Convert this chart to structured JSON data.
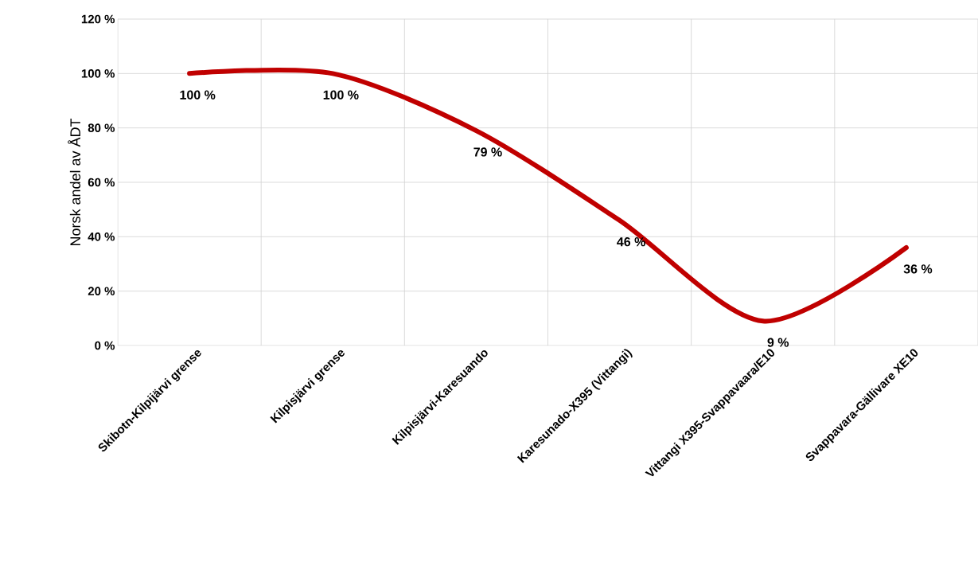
{
  "chart_data": {
    "type": "line",
    "ylabel": "Norsk andel av ÅDT",
    "categories": [
      "Skibotn-Kilpijärvi grense",
      "Kilpisjärvi grense",
      "Kilpisjärvi-Karesuando",
      "Karesunado-X395 (Vittangi)",
      "Vittangi X395-Svappavaara/E10",
      "Svappavara-Gällivare XE10"
    ],
    "series": [
      {
        "color": "#c00000",
        "values": [
          100,
          100,
          79,
          46,
          9,
          36
        ],
        "value_labels": [
          "100 %",
          "100 %",
          "79 %",
          "46 %",
          "9 %",
          "36 %"
        ]
      }
    ],
    "ylim": [
      0,
      120
    ],
    "yticks": [
      {
        "value": 0,
        "label": "0 %"
      },
      {
        "value": 20,
        "label": "20 %"
      },
      {
        "value": 40,
        "label": "40 %"
      },
      {
        "value": 60,
        "label": "60 %"
      },
      {
        "value": 80,
        "label": "80 %"
      },
      {
        "value": 100,
        "label": "100 %"
      },
      {
        "value": 120,
        "label": "120 %"
      }
    ],
    "grid": true,
    "marker": "none",
    "line_style": "solid"
  }
}
